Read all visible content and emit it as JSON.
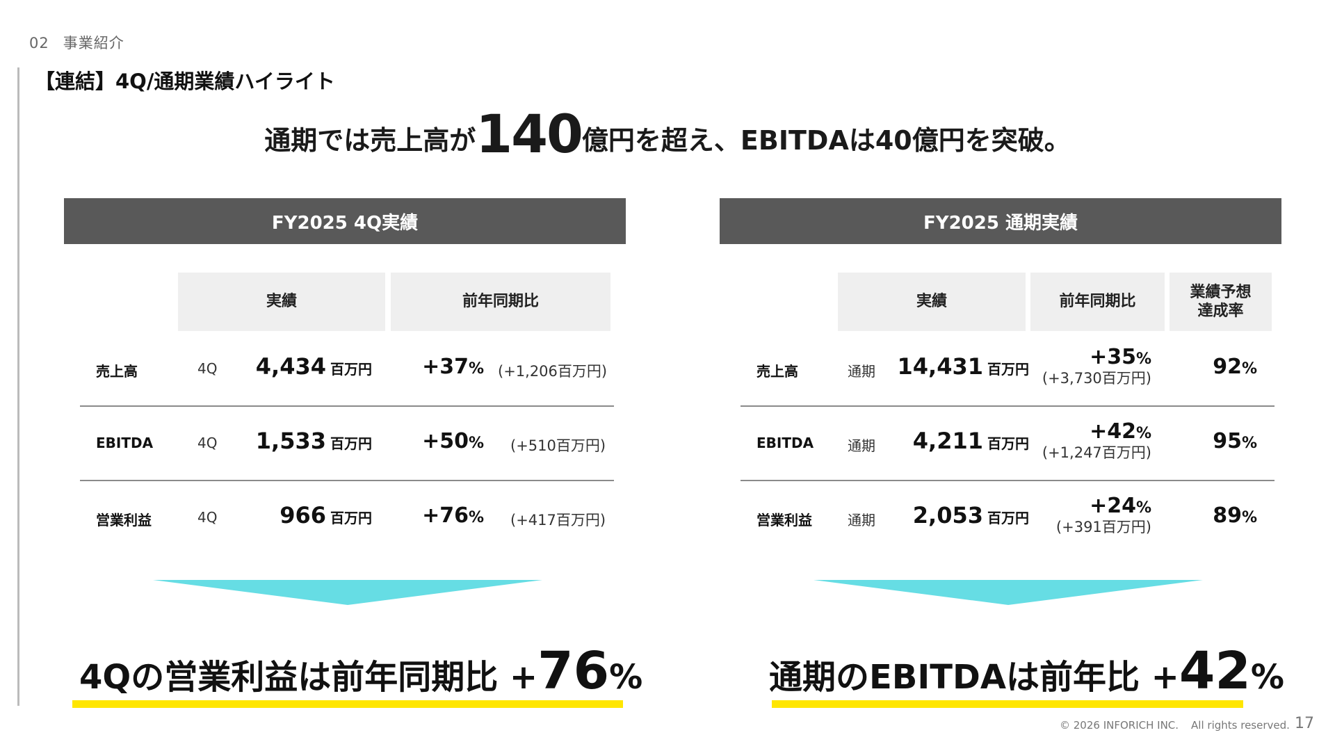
{
  "section": {
    "number": "02",
    "name": "事業紹介"
  },
  "title": "【連結】4Q/通期業績ハイライト",
  "headline": {
    "pre": "通期では売上高が",
    "big": "140",
    "post": "億円を超え、EBITDAは40億円を突破。"
  },
  "panels": {
    "q4": {
      "header": "FY2025 4Q実績",
      "col1": "実績",
      "col2": "前年同期比",
      "rows": [
        {
          "label": "売上高",
          "period": "4Q",
          "value": "4,434",
          "unit": "百万円",
          "yoy": "+37",
          "pct": "%",
          "diff": "(+1,206百万円)"
        },
        {
          "label": "EBITDA",
          "period": "4Q",
          "value": "1,533",
          "unit": "百万円",
          "yoy": "+50",
          "pct": "%",
          "diff": "(+510百万円)"
        },
        {
          "label": "営業利益",
          "period": "4Q",
          "value": "966",
          "unit": "百万円",
          "yoy": "+76",
          "pct": "%",
          "diff": "(+417百万円)"
        }
      ],
      "summary": {
        "text": "4Qの営業利益は前年同期比 +",
        "big": "76",
        "pct": "%"
      }
    },
    "fy": {
      "header": "FY2025 通期実績",
      "col1": "実績",
      "col2": "前年同期比",
      "col3_line1": "業績予想",
      "col3_line2": "達成率",
      "rows": [
        {
          "label": "売上高",
          "period": "通期",
          "value": "14,431",
          "unit": "百万円",
          "yoy": "+35",
          "pct": "%",
          "diff": "(+3,730百万円)",
          "achievement": "92",
          "ach_pct": "%"
        },
        {
          "label": "EBITDA",
          "period": "通期",
          "value": "4,211",
          "unit": "百万円",
          "yoy": "+42",
          "pct": "%",
          "diff": "(+1,247百万円)",
          "achievement": "95",
          "ach_pct": "%"
        },
        {
          "label": "営業利益",
          "period": "通期",
          "value": "2,053",
          "unit": "百万円",
          "yoy": "+24",
          "pct": "%",
          "diff": "(+391百万円)",
          "achievement": "89",
          "ach_pct": "%"
        }
      ],
      "summary": {
        "text": "通期のEBITDAは前年比 +",
        "big": "42",
        "pct": "%"
      }
    }
  },
  "colors": {
    "header_bg": "#595959",
    "arrow": "#66dde4",
    "highlight": "#ffe600",
    "col_head_bg": "#efefef"
  },
  "footer": {
    "copyright": "© 2026 INFORICH INC.",
    "rights": "All rights reserved.",
    "page": "17"
  }
}
